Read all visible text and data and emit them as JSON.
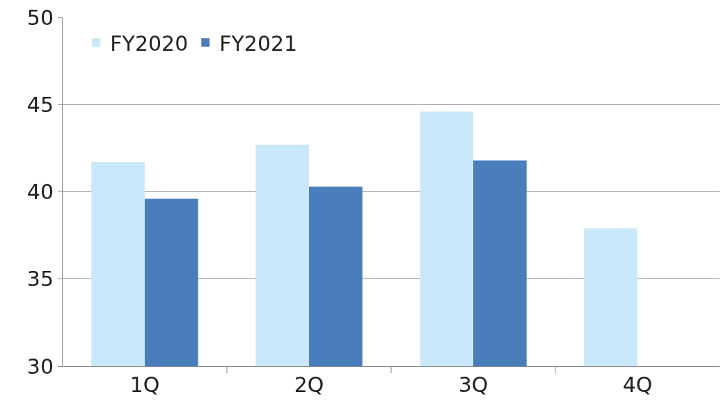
{
  "chart_data": {
    "type": "bar",
    "categories": [
      "1Q",
      "2Q",
      "3Q",
      "4Q"
    ],
    "series": [
      {
        "name": "FY2020",
        "color": "#c9e8fa",
        "values": [
          41.7,
          42.7,
          44.6,
          37.9
        ]
      },
      {
        "name": "FY2021",
        "color": "#4a7ebb",
        "values": [
          39.6,
          40.3,
          41.8,
          null
        ]
      }
    ],
    "ylim": [
      30,
      50
    ],
    "yticks": [
      30,
      35,
      40,
      45,
      50
    ],
    "grid": "y",
    "legend": "top left"
  }
}
